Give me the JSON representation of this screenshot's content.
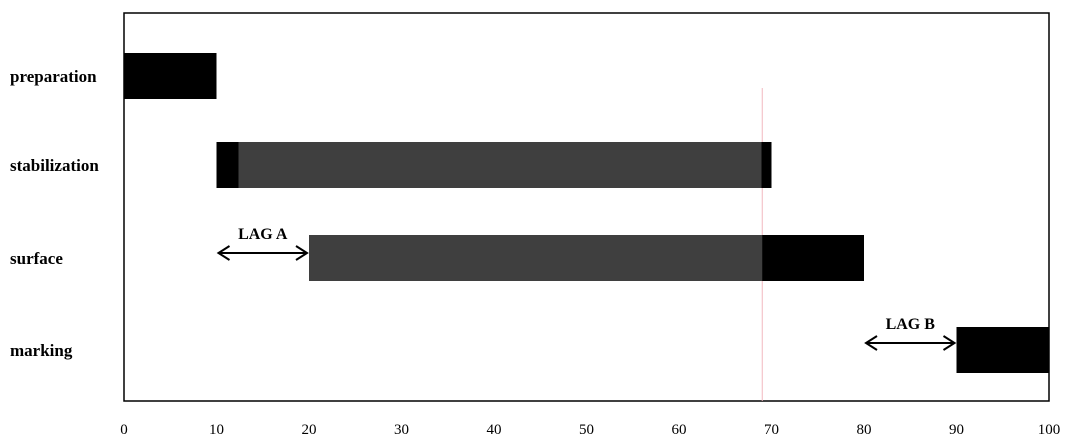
{
  "chart_data": {
    "type": "gantt",
    "title": "",
    "xlabel": "",
    "ylabel": "",
    "xlim": [
      0,
      100
    ],
    "xticks": [
      0,
      10,
      20,
      30,
      40,
      50,
      60,
      70,
      80,
      90,
      100
    ],
    "grid": false,
    "categories": [
      "preparation",
      "stabilization",
      "surface",
      "marking"
    ],
    "tasks": [
      {
        "name": "preparation",
        "start": 0,
        "end": 10
      },
      {
        "name": "stabilization",
        "start": 10,
        "end": 70
      },
      {
        "name": "surface",
        "start": 20,
        "end": 80
      },
      {
        "name": "marking",
        "start": 90,
        "end": 100
      }
    ],
    "lags": [
      {
        "label": "LAG A",
        "from": 10,
        "to": 20,
        "row": "surface"
      },
      {
        "label": "LAG B",
        "from": 80,
        "to": 90,
        "row": "marking"
      }
    ],
    "reference_line_x": 69,
    "colors": {
      "bar": "#000000",
      "bar_fill": "#3f3f3f",
      "reference_line": "#f2b8bf"
    }
  }
}
